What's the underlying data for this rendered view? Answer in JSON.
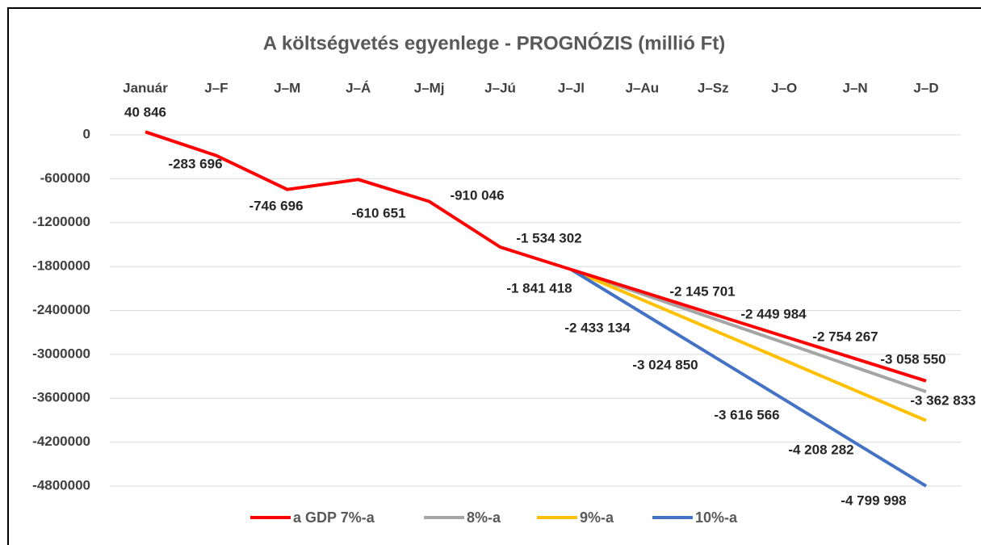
{
  "chart_data": {
    "type": "line",
    "title": "A költségvetés egyenlege - PROGNÓZIS (millió Ft)",
    "categories": [
      "Január",
      "J–F",
      "J–M",
      "J–Á",
      "J–Mj",
      "J–Jú",
      "J–Jl",
      "J–Au",
      "J–Sz",
      "J–O",
      "J–N",
      "J–D"
    ],
    "series": [
      {
        "name": "a GDP 7%-a",
        "color": "#ff0000",
        "values": [
          40846,
          -283696,
          -746696,
          -610651,
          -910046,
          -1534302,
          -1841418,
          -2145701,
          -2449984,
          -2754267,
          -3058550,
          -3362833
        ],
        "value_labels": [
          "40 846",
          "-283 696",
          "-746 696",
          "-610 651",
          "-910 046",
          "-1 534 302",
          "-1 841 418",
          "-2 145 701",
          "-2 449 984",
          "-2 754 267",
          "-3 058 550",
          "-3 362 833"
        ]
      },
      {
        "name": "8%-a",
        "color": "#a5a5a5",
        "values": [
          null,
          null,
          null,
          null,
          null,
          null,
          -1841418,
          -2175000,
          -2509000,
          -2842000,
          -3176000,
          -3510000
        ]
      },
      {
        "name": "9%-a",
        "color": "#ffc000",
        "values": [
          null,
          null,
          null,
          null,
          null,
          null,
          -1841418,
          -2254000,
          -2667000,
          -3079000,
          -3492000,
          -3904000
        ]
      },
      {
        "name": "10%-a",
        "color": "#4472c4",
        "values": [
          null,
          null,
          null,
          null,
          null,
          null,
          -1841418,
          -2433134,
          -3024850,
          -3616566,
          -4208282,
          -4799998
        ],
        "value_labels": [
          null,
          null,
          null,
          null,
          null,
          null,
          null,
          "-2 433 134",
          "-3 024 850",
          "-3 616 566",
          "-4 208 282",
          "-4 799 998"
        ]
      }
    ],
    "ylim": [
      -4800000,
      600000
    ],
    "yticks": [
      0,
      -600000,
      -1200000,
      -1800000,
      -2400000,
      -3000000,
      -3600000,
      -4200000,
      -4800000
    ],
    "grid": true,
    "legend": "bottom"
  }
}
